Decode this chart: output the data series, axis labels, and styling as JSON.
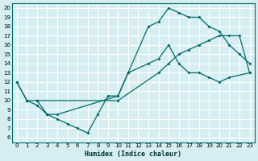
{
  "xlabel": "Humidex (Indice chaleur)",
  "bg_color": "#d6eef2",
  "grid_color": "#ffffff",
  "line_color": "#006b6b",
  "xlim": [
    -0.5,
    23.5
  ],
  "ylim": [
    5.5,
    20.5
  ],
  "xticks": [
    0,
    1,
    2,
    3,
    4,
    5,
    6,
    7,
    8,
    9,
    10,
    11,
    12,
    13,
    14,
    15,
    16,
    17,
    18,
    19,
    20,
    21,
    22,
    23
  ],
  "yticks": [
    6,
    7,
    8,
    9,
    10,
    11,
    12,
    13,
    14,
    15,
    16,
    17,
    18,
    19,
    20
  ],
  "line1_x": [
    0,
    1,
    2,
    3,
    4,
    10,
    11,
    13,
    14,
    15,
    16,
    17,
    18,
    19,
    20,
    21,
    22,
    23
  ],
  "line1_y": [
    12,
    10,
    9.5,
    8.5,
    8.5,
    10.5,
    13,
    18,
    18.5,
    20,
    19.5,
    19,
    19,
    18,
    17.5,
    16,
    15,
    14
  ],
  "line2_x": [
    2,
    3,
    4,
    5,
    6,
    7,
    8,
    9,
    10,
    11,
    13,
    14,
    15,
    16,
    17,
    18,
    19,
    20,
    21,
    23
  ],
  "line2_y": [
    10,
    8.5,
    8,
    7.5,
    7,
    6.5,
    8.5,
    10.5,
    10.5,
    13,
    14,
    14.5,
    16,
    14,
    13,
    13,
    12.5,
    12,
    12.5,
    13
  ],
  "line3_x": [
    0,
    1,
    2,
    10,
    14,
    15,
    16,
    17,
    18,
    19,
    20,
    21,
    22,
    23
  ],
  "line3_y": [
    12,
    10,
    10,
    10,
    13,
    14,
    15,
    15.5,
    16,
    16.5,
    17,
    17,
    17,
    13
  ]
}
